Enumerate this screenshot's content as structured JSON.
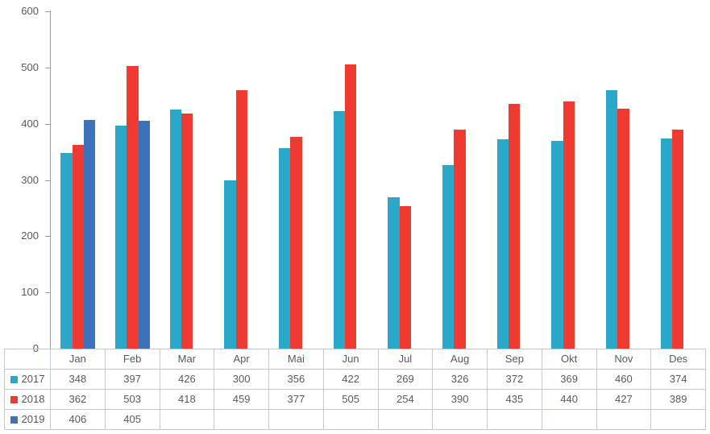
{
  "chart_data": {
    "type": "bar",
    "title": "",
    "xlabel": "",
    "ylabel": "",
    "categories": [
      "Jan",
      "Feb",
      "Mar",
      "Apr",
      "Mai",
      "Jun",
      "Jul",
      "Aug",
      "Sep",
      "Okt",
      "Nov",
      "Des"
    ],
    "series": [
      {
        "name": "2017",
        "color": "#2AA7C9",
        "values": [
          348,
          397,
          426,
          300,
          356,
          422,
          269,
          326,
          372,
          369,
          460,
          374
        ]
      },
      {
        "name": "2018",
        "color": "#EE3A31",
        "values": [
          362,
          503,
          418,
          459,
          377,
          505,
          254,
          390,
          435,
          440,
          427,
          389
        ]
      },
      {
        "name": "2019",
        "color": "#3B72B9",
        "values": [
          406,
          405,
          null,
          null,
          null,
          null,
          null,
          null,
          null,
          null,
          null,
          null
        ]
      }
    ],
    "ylim": [
      0,
      600
    ],
    "yticks": [
      600,
      500,
      400,
      300,
      200,
      100,
      0
    ],
    "grid": false,
    "legend_position": "table-left",
    "axis_color": "#9C9C9C",
    "table_border_color": "#C3C9D0",
    "text_color": "#595959"
  }
}
